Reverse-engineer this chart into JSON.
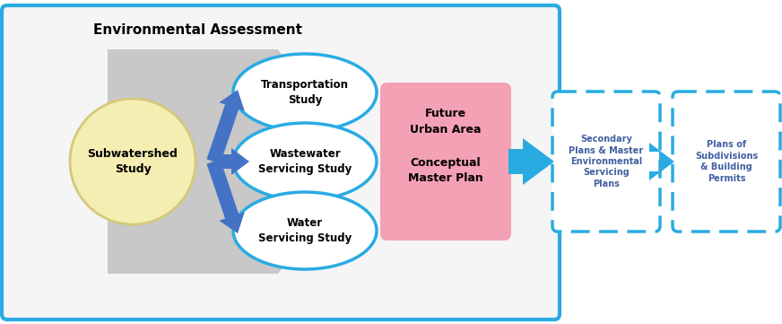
{
  "title": "Environmental Assessment",
  "bg_color": "#ffffff",
  "outer_box_color": "#29abe2",
  "outer_box_bg": "#f5f5f5",
  "subwatershed_label": "Subwatershed\nStudy",
  "subwatershed_fill": "#f5eeb3",
  "subwatershed_border": "#d4c97a",
  "circle_fill": "#ffffff",
  "circle_border": "#29abe2",
  "gray_fill": "#c8c8c8",
  "gray_rect_fill": "#c8c8c8",
  "blue_arrow_fill": "#4472c4",
  "future_box_fill": "#f4a0b5",
  "dashed_box1_label": "Secondary\nPlans & Master\nEnvironmental\nServicing\nPlans",
  "dashed_box2_label": "Plans of\nSubdivisions\n& Building\nPermits",
  "dashed_color": "#29abe2",
  "big_arrow_color": "#29abe2",
  "font_color": "#000000",
  "dashed_font_color": "#4060a0"
}
